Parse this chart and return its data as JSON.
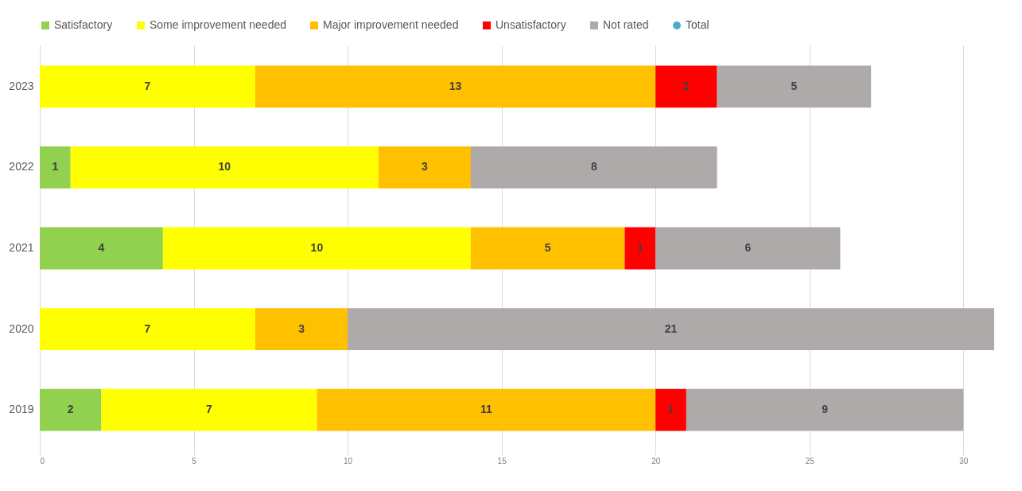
{
  "chart_data": {
    "type": "bar",
    "orientation": "horizontal",
    "stacked": true,
    "categories": [
      "2023",
      "2022",
      "2021",
      "2020",
      "2019"
    ],
    "series": [
      {
        "name": "Satisfactory",
        "color": "#92d050",
        "values": [
          null,
          1,
          4,
          null,
          2
        ]
      },
      {
        "name": "Some improvement needed",
        "color": "#ffff00",
        "values": [
          7,
          10,
          10,
          7,
          7
        ]
      },
      {
        "name": "Major improvement needed",
        "color": "#ffc000",
        "values": [
          13,
          3,
          5,
          3,
          11
        ]
      },
      {
        "name": "Unsatisfactory",
        "color": "#ff0000",
        "values": [
          2,
          null,
          1,
          null,
          1
        ]
      },
      {
        "name": "Not rated",
        "color": "#aeaaaa",
        "values": [
          5,
          8,
          6,
          21,
          9
        ]
      },
      {
        "name": "Total",
        "type": "scatter",
        "color": "#4bacc6",
        "values": [
          null,
          null,
          null,
          null,
          null
        ]
      }
    ],
    "xlim": [
      0,
      31
    ],
    "xticks": [
      0,
      5,
      10,
      15,
      20,
      25,
      30
    ],
    "grid": "x",
    "legend": "top",
    "data_labels": true
  }
}
